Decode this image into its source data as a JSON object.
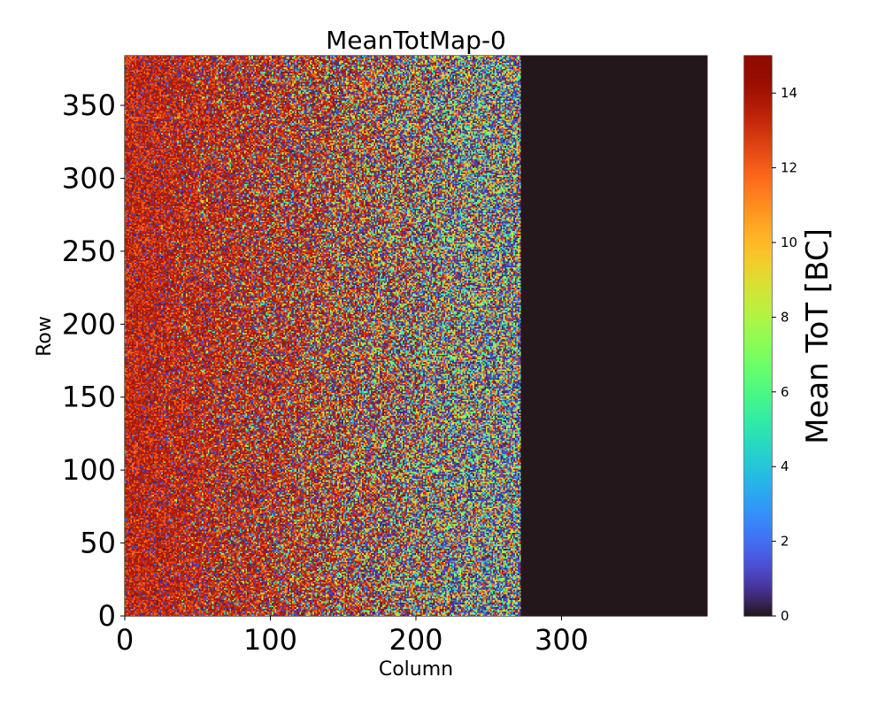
{
  "chart_data": {
    "type": "heatmap",
    "title": "MeanTotMap-0",
    "xlabel": "Column",
    "ylabel": "Row",
    "xlim": [
      0,
      400
    ],
    "ylim": [
      0,
      384
    ],
    "x_ticks": [
      0,
      100,
      200,
      300
    ],
    "y_ticks": [
      0,
      50,
      100,
      150,
      200,
      250,
      300,
      350
    ],
    "colormap": "turbo",
    "colorbar": {
      "label": "Mean ToT [BC]",
      "range": [
        0,
        15
      ],
      "ticks": [
        0,
        2,
        4,
        6,
        8,
        10,
        12,
        14
      ]
    },
    "data_description": {
      "active_columns": [
        0,
        272
      ],
      "empty_columns": [
        272,
        400
      ],
      "empty_value": 0,
      "left_edge_typical_value": 14,
      "trend": "mean ToT decreases from about 14 BC at column 0 toward noisy mixed values near column 270"
    }
  }
}
